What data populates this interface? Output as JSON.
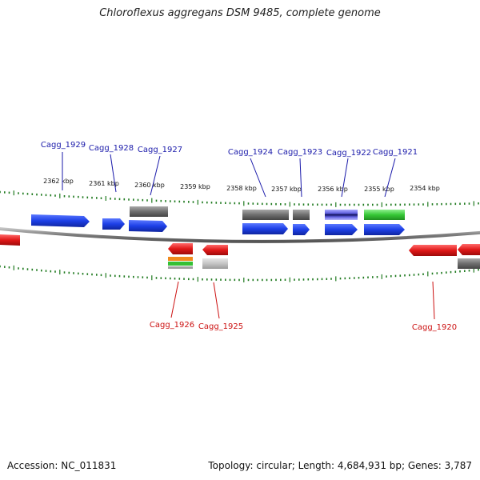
{
  "title": "Chloroflexus aggregans DSM 9485, complete genome",
  "footer": {
    "accession": "Accession: NC_011831",
    "topology": "Topology: circular; Length: 4,684,931 bp; Genes: 3,787"
  },
  "kbp_labels": [
    "2362 kbp",
    "2361 kbp",
    "2360 kbp",
    "2359 kbp",
    "2358 kbp",
    "2357 kbp",
    "2356 kbp",
    "2355 kbp",
    "2354 kbp"
  ],
  "gene_labels_top": [
    "Cagg_1929",
    "Cagg_1928",
    "Cagg_1927",
    "Cagg_1924",
    "Cagg_1923",
    "Cagg_1922",
    "Cagg_1921"
  ],
  "gene_labels_bottom": [
    "Cagg_1926",
    "Cagg_1925",
    "Cagg_1920"
  ],
  "colors": {
    "forward_label": "#1a1aaa",
    "reverse_label": "#cc1111",
    "forward_gene": "#1f3fe0",
    "reverse_gene": "#e01818",
    "gray_feature": "#707070",
    "green_feature": "#3dcc3d",
    "tick": "#1f7a1f",
    "backbone": "#8c8c8c"
  }
}
